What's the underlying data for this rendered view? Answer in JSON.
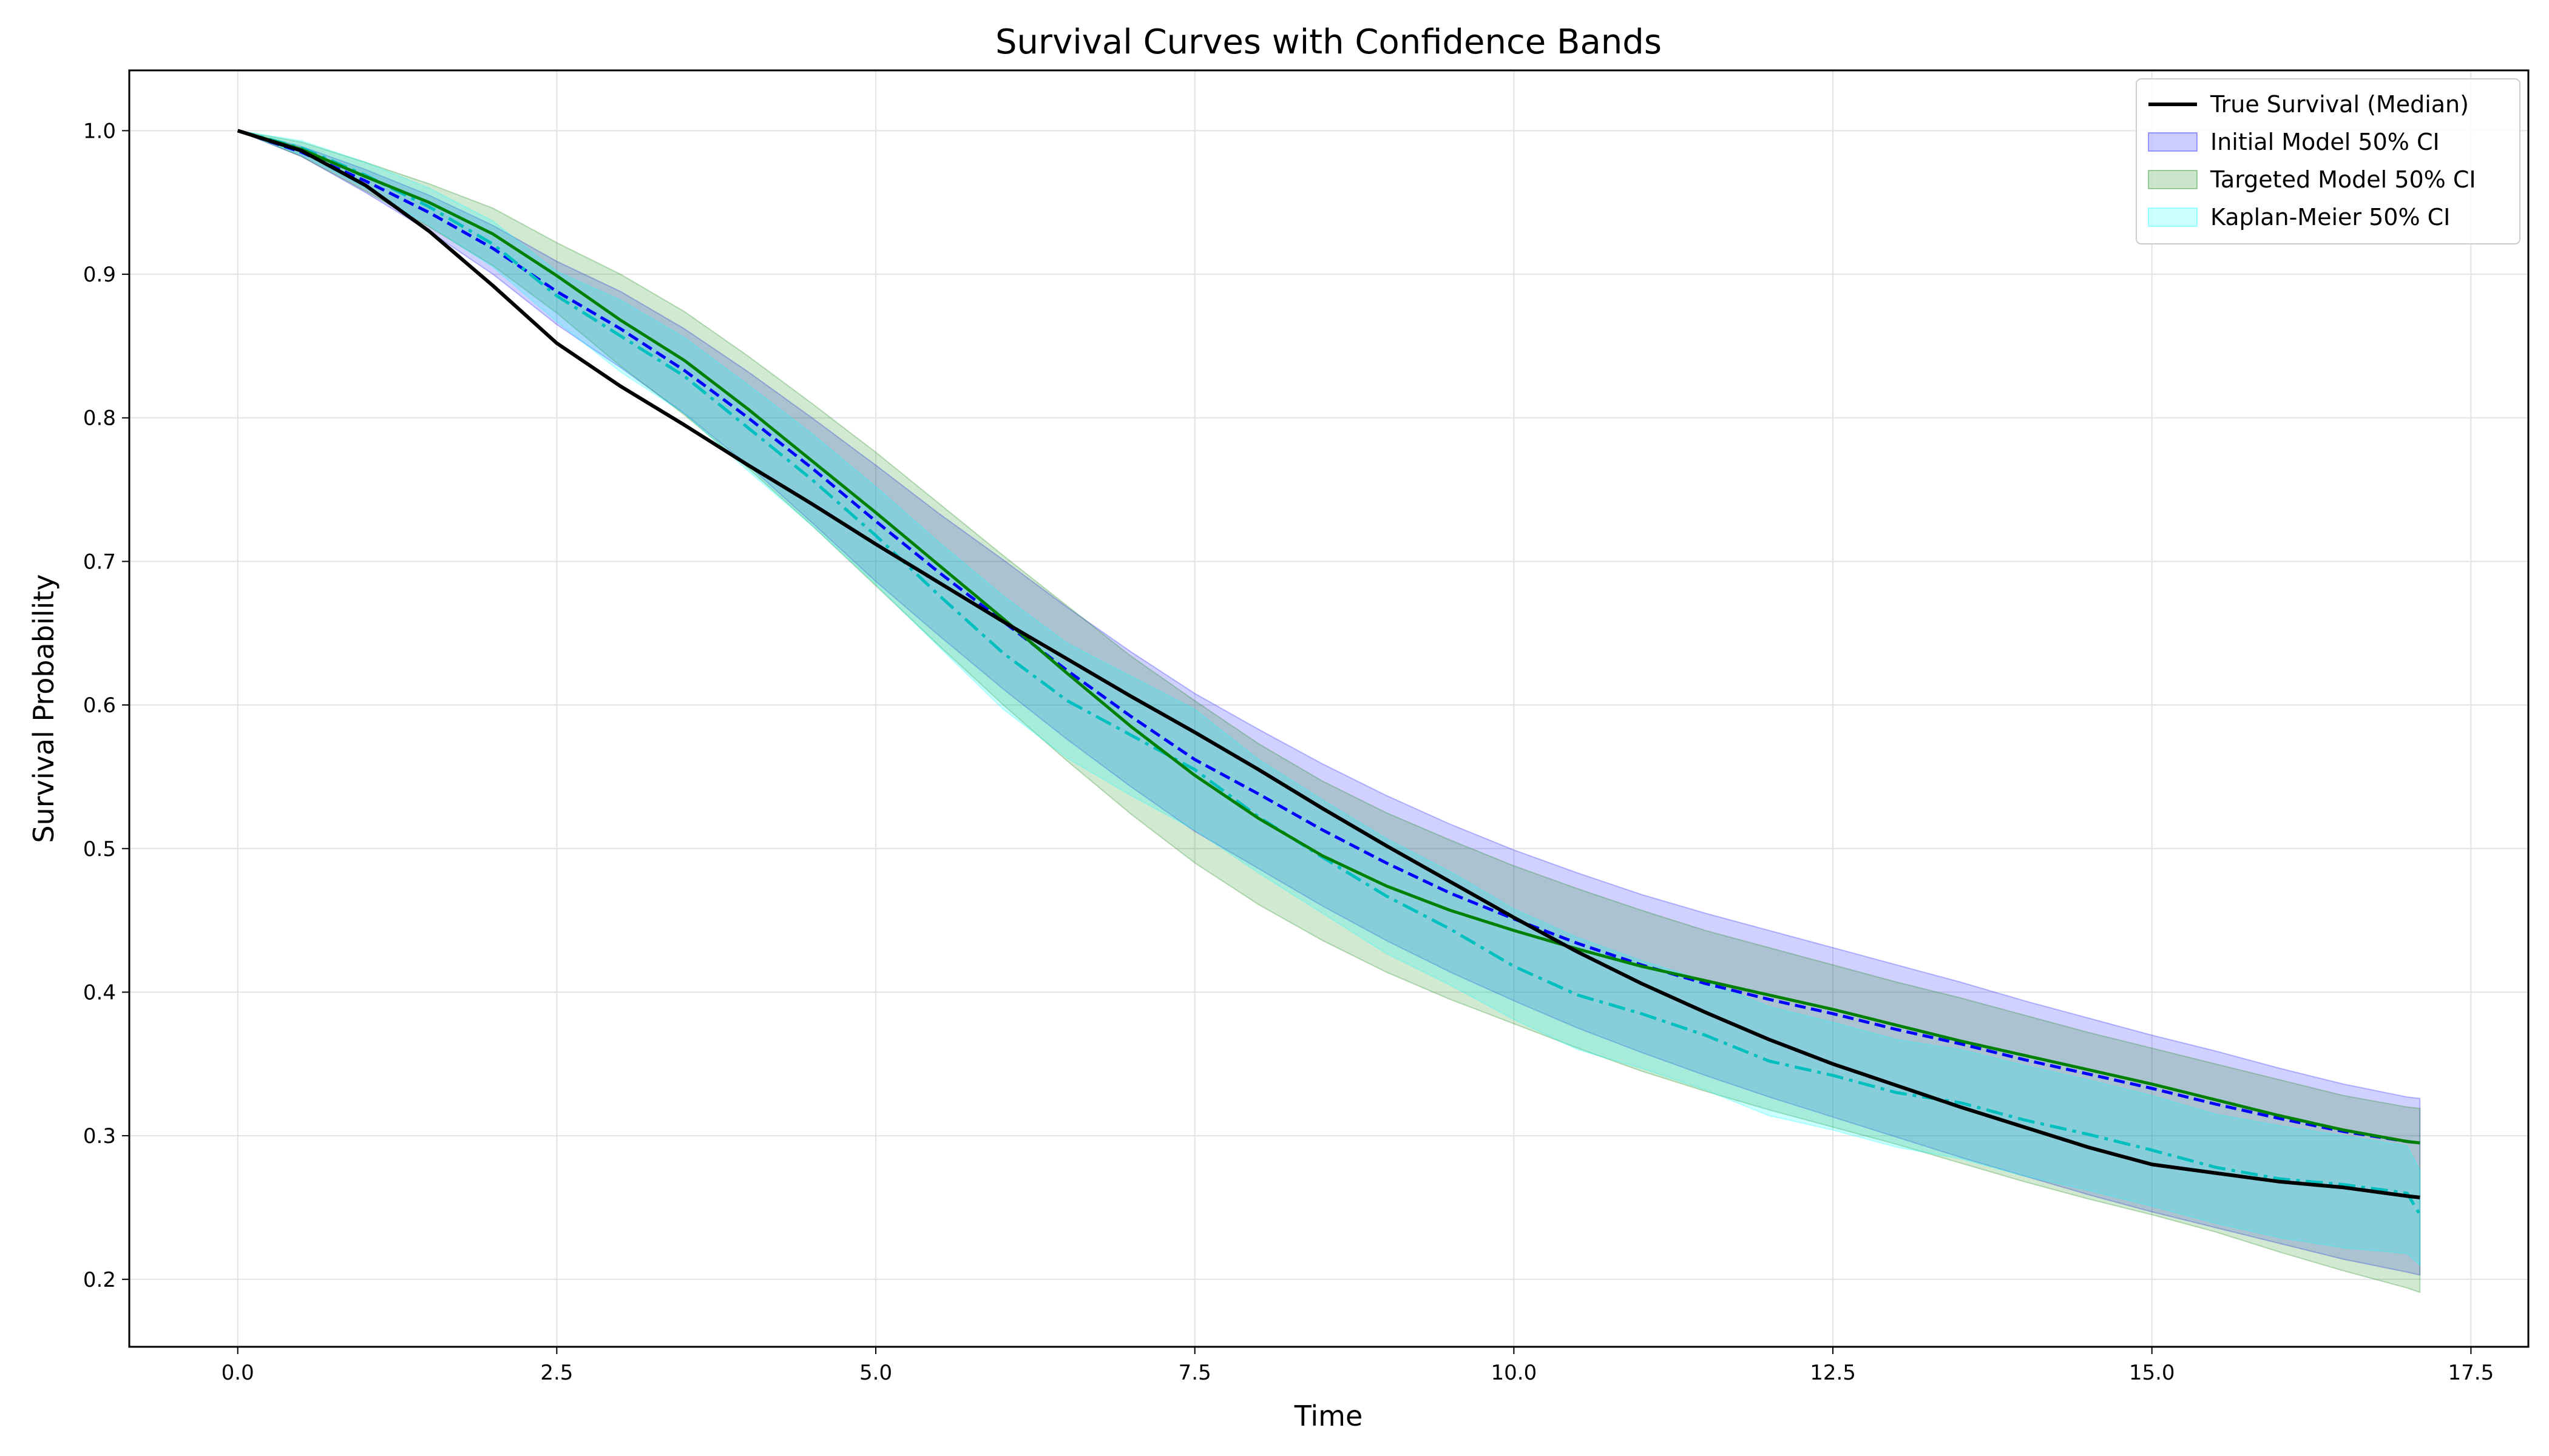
{
  "chart_data": {
    "type": "line",
    "title": "Survival Curves with Confidence Bands",
    "xlabel": "Time",
    "ylabel": "Survival Probability",
    "xlim": [
      -0.85,
      17.95
    ],
    "ylim": [
      0.153,
      1.042
    ],
    "xticks": [
      "0.0",
      "2.5",
      "5.0",
      "7.5",
      "10.0",
      "12.5",
      "15.0",
      "17.5"
    ],
    "yticks": [
      "0.2",
      "0.3",
      "0.4",
      "0.5",
      "0.6",
      "0.7",
      "0.8",
      "0.9",
      "1.0"
    ],
    "grid": true,
    "legend_position": "top-right",
    "x": [
      0,
      0.5,
      1,
      1.5,
      2,
      2.5,
      3,
      3.5,
      4,
      4.5,
      5,
      5.5,
      6,
      6.5,
      7,
      7.5,
      8,
      8.5,
      9,
      9.5,
      10,
      10.5,
      11,
      11.5,
      12,
      12.5,
      13,
      13.5,
      14,
      14.5,
      15,
      15.5,
      16,
      16.5,
      17,
      17.1
    ],
    "series": [
      {
        "name": "True Survival (Median)",
        "style": "solid",
        "color": "#000000",
        "values": [
          1.0,
          0.986,
          0.962,
          0.93,
          0.892,
          0.852,
          0.822,
          0.795,
          0.767,
          0.74,
          0.712,
          0.685,
          0.658,
          0.632,
          0.606,
          0.581,
          0.555,
          0.528,
          0.502,
          0.477,
          0.452,
          0.428,
          0.406,
          0.386,
          0.367,
          0.35,
          0.335,
          0.32,
          0.306,
          0.292,
          0.28,
          0.274,
          0.268,
          0.264,
          0.258,
          0.257
        ]
      },
      {
        "name": "Initial Model",
        "style": "dashed",
        "color": "#0000ff",
        "values": [
          1.0,
          0.985,
          0.965,
          0.943,
          0.918,
          0.888,
          0.862,
          0.833,
          0.8,
          0.765,
          0.728,
          0.692,
          0.658,
          0.624,
          0.592,
          0.562,
          0.538,
          0.513,
          0.49,
          0.469,
          0.451,
          0.434,
          0.419,
          0.406,
          0.395,
          0.385,
          0.374,
          0.364,
          0.353,
          0.343,
          0.333,
          0.322,
          0.312,
          0.303,
          0.296,
          0.295
        ]
      },
      {
        "name": "Targeted Model",
        "style": "solid",
        "color": "#008000",
        "values": [
          1.0,
          0.987,
          0.968,
          0.95,
          0.928,
          0.899,
          0.868,
          0.84,
          0.806,
          0.77,
          0.734,
          0.697,
          0.66,
          0.622,
          0.585,
          0.551,
          0.521,
          0.495,
          0.474,
          0.457,
          0.443,
          0.43,
          0.418,
          0.408,
          0.398,
          0.388,
          0.377,
          0.366,
          0.356,
          0.346,
          0.336,
          0.325,
          0.314,
          0.304,
          0.296,
          0.295
        ]
      },
      {
        "name": "Kaplan-Meier",
        "style": "dashdot",
        "color": "#00bfbf",
        "values": [
          1.0,
          0.988,
          0.969,
          0.947,
          0.921,
          0.885,
          0.857,
          0.829,
          0.793,
          0.757,
          0.718,
          0.676,
          0.636,
          0.603,
          0.579,
          0.555,
          0.522,
          0.494,
          0.467,
          0.444,
          0.418,
          0.398,
          0.385,
          0.37,
          0.352,
          0.342,
          0.33,
          0.323,
          0.311,
          0.301,
          0.29,
          0.278,
          0.27,
          0.266,
          0.26,
          0.245
        ]
      }
    ],
    "bands": [
      {
        "name": "Initial Model 50% CI",
        "color": "#0000ff",
        "opacity": 0.18,
        "lower": [
          1.0,
          0.982,
          0.957,
          0.93,
          0.9,
          0.865,
          0.835,
          0.803,
          0.767,
          0.727,
          0.686,
          0.648,
          0.611,
          0.576,
          0.543,
          0.512,
          0.486,
          0.46,
          0.436,
          0.414,
          0.394,
          0.375,
          0.358,
          0.342,
          0.327,
          0.313,
          0.299,
          0.285,
          0.272,
          0.259,
          0.247,
          0.236,
          0.225,
          0.214,
          0.205,
          0.203
        ],
        "upper": [
          1.0,
          0.989,
          0.973,
          0.955,
          0.934,
          0.909,
          0.888,
          0.862,
          0.832,
          0.8,
          0.767,
          0.733,
          0.701,
          0.668,
          0.637,
          0.608,
          0.583,
          0.559,
          0.537,
          0.517,
          0.499,
          0.483,
          0.468,
          0.455,
          0.443,
          0.431,
          0.419,
          0.407,
          0.394,
          0.382,
          0.37,
          0.359,
          0.347,
          0.336,
          0.327,
          0.326
        ]
      },
      {
        "name": "Targeted Model 50% CI",
        "color": "#008000",
        "opacity": 0.18,
        "lower": [
          1.0,
          0.982,
          0.958,
          0.933,
          0.906,
          0.873,
          0.836,
          0.802,
          0.765,
          0.725,
          0.683,
          0.641,
          0.6,
          0.561,
          0.524,
          0.49,
          0.461,
          0.436,
          0.414,
          0.395,
          0.378,
          0.361,
          0.345,
          0.331,
          0.318,
          0.306,
          0.294,
          0.281,
          0.268,
          0.256,
          0.245,
          0.233,
          0.219,
          0.206,
          0.194,
          0.191
        ],
        "upper": [
          1.0,
          0.992,
          0.978,
          0.963,
          0.946,
          0.922,
          0.9,
          0.874,
          0.843,
          0.81,
          0.776,
          0.74,
          0.704,
          0.669,
          0.634,
          0.603,
          0.573,
          0.547,
          0.525,
          0.506,
          0.488,
          0.472,
          0.457,
          0.443,
          0.431,
          0.419,
          0.407,
          0.396,
          0.384,
          0.372,
          0.361,
          0.35,
          0.339,
          0.328,
          0.32,
          0.319
        ]
      },
      {
        "name": "Kaplan-Meier 50% CI",
        "color": "#00ffff",
        "opacity": 0.2,
        "lower": [
          1.0,
          0.983,
          0.96,
          0.934,
          0.905,
          0.867,
          0.832,
          0.803,
          0.763,
          0.725,
          0.684,
          0.64,
          0.597,
          0.563,
          0.537,
          0.513,
          0.483,
          0.455,
          0.427,
          0.405,
          0.381,
          0.36,
          0.347,
          0.332,
          0.314,
          0.304,
          0.292,
          0.284,
          0.272,
          0.262,
          0.251,
          0.239,
          0.229,
          0.222,
          0.218,
          0.21
        ],
        "upper": [
          1.0,
          0.993,
          0.978,
          0.96,
          0.937,
          0.902,
          0.882,
          0.856,
          0.823,
          0.789,
          0.752,
          0.713,
          0.676,
          0.643,
          0.62,
          0.597,
          0.562,
          0.534,
          0.507,
          0.484,
          0.458,
          0.438,
          0.422,
          0.408,
          0.39,
          0.379,
          0.367,
          0.36,
          0.349,
          0.339,
          0.328,
          0.315,
          0.307,
          0.3,
          0.293,
          0.276
        ]
      }
    ],
    "legend": [
      {
        "label": "True Survival (Median)",
        "kind": "line",
        "color": "#000000"
      },
      {
        "label": "Initial Model 50% CI",
        "kind": "patch",
        "color": "#0000ff"
      },
      {
        "label": "Targeted Model 50% CI",
        "kind": "patch",
        "color": "#008000"
      },
      {
        "label": "Kaplan-Meier 50% CI",
        "kind": "patch",
        "color": "#00ffff"
      }
    ]
  }
}
